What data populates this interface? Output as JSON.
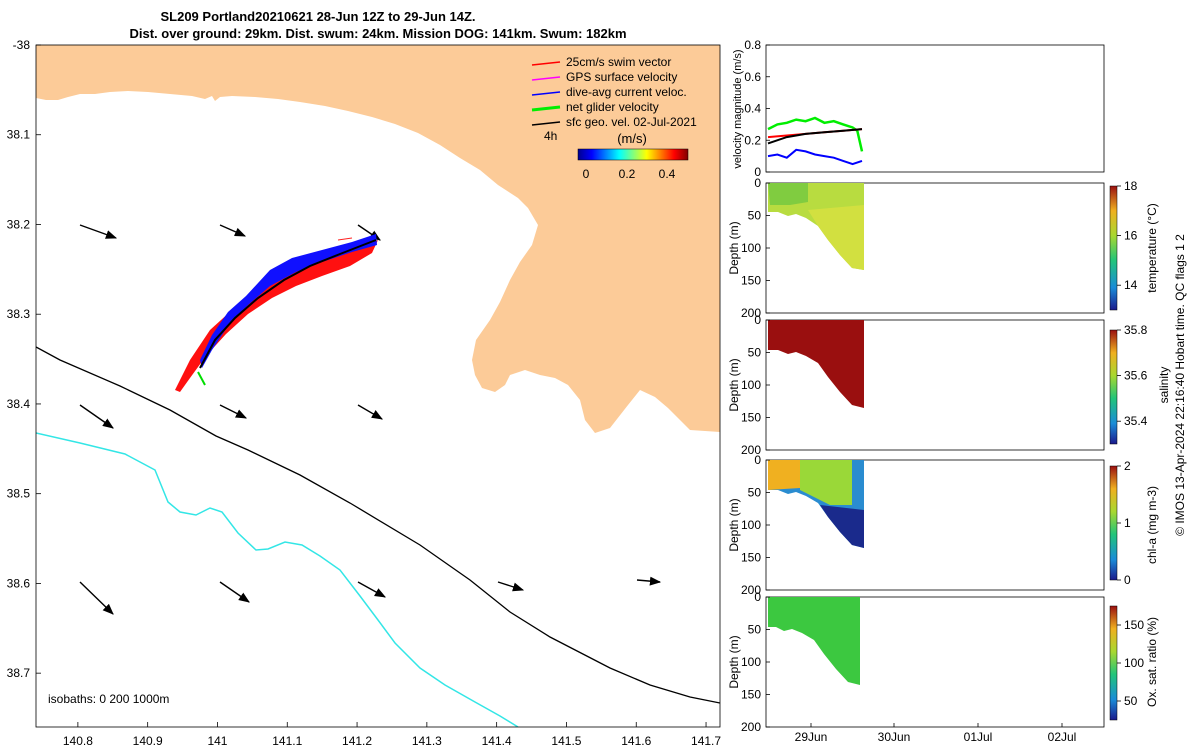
{
  "title": {
    "line1": "SL209 Portland20210621 28-Jun 12Z to 29-Jun 14Z.",
    "line2": "Dist. over ground: 29km. Dist. swum: 24km. Mission DOG: 141km. Swum: 182km"
  },
  "map": {
    "lon_ticks": [
      "140.8",
      "140.9",
      "141",
      "141.1",
      "141.2",
      "141.3",
      "141.4",
      "141.5",
      "141.6",
      "141.7"
    ],
    "lat_ticks": [
      "-38",
      "38.1",
      "38.2",
      "38.3",
      "38.4",
      "38.5",
      "38.6",
      "38.7"
    ],
    "xlim": [
      140.74,
      141.72
    ],
    "ylim": [
      -38.76,
      -38.0
    ],
    "land_color": "#fccb98",
    "legend": [
      {
        "label": "25cm/s swim vector",
        "color": "#ff0000"
      },
      {
        "label": "GPS surface velocity",
        "color": "#ff00ff"
      },
      {
        "label": "dive-avg current veloc.",
        "color": "#0000ff"
      },
      {
        "label": "net glider velocity",
        "color": "#00ee00"
      },
      {
        "label": "sfc geo. vel. 02-Jul-2021",
        "color": "#000000"
      }
    ],
    "legend_time": "4h",
    "colorbar_label": "(m/s)",
    "colorbar_ticks": [
      "0",
      "0.2",
      "0.4"
    ],
    "isobath_label": "isobaths: 0   200  1000m"
  },
  "chart_data": [
    {
      "type": "line",
      "ylabel": "velocity magnitude (m/s)",
      "ylim": [
        0,
        0.8
      ],
      "yticks": [
        "0",
        "0.2",
        "0.4",
        "0.6",
        "0.8"
      ],
      "xlim": [
        "28-Jun 12:00",
        "02-Jul 12:00"
      ],
      "series": [
        {
          "color": "#00ee00",
          "x": [
            0.0,
            0.1,
            0.2,
            0.3,
            0.4,
            0.5,
            0.6,
            0.7,
            0.8,
            0.9,
            0.95,
            1.0
          ],
          "y": [
            0.27,
            0.3,
            0.31,
            0.33,
            0.32,
            0.34,
            0.31,
            0.32,
            0.3,
            0.28,
            0.26,
            0.13
          ]
        },
        {
          "color": "#ff0000",
          "x": [
            0.0,
            0.2,
            0.4,
            0.6,
            0.8,
            1.0
          ],
          "y": [
            0.22,
            0.23,
            0.24,
            0.25,
            0.26,
            0.27
          ]
        },
        {
          "color": "#000000",
          "x": [
            0.0,
            0.2,
            0.4,
            0.6,
            0.8,
            1.0
          ],
          "y": [
            0.18,
            0.22,
            0.24,
            0.25,
            0.26,
            0.27
          ]
        },
        {
          "color": "#0000ff",
          "x": [
            0.0,
            0.1,
            0.2,
            0.3,
            0.4,
            0.5,
            0.6,
            0.7,
            0.8,
            0.9,
            1.0
          ],
          "y": [
            0.1,
            0.11,
            0.09,
            0.14,
            0.13,
            0.11,
            0.1,
            0.09,
            0.07,
            0.05,
            0.07
          ]
        }
      ]
    },
    {
      "type": "heatmap",
      "ylabel": "Depth (m)",
      "yticks": [
        "0",
        "50",
        "100",
        "150",
        "200"
      ],
      "ylim": [
        0,
        200
      ],
      "colorbar_label": "temperature (°C)",
      "colorbar_ticks": [
        "18",
        "16",
        "14"
      ],
      "colorbar_range": [
        13,
        18
      ]
    },
    {
      "type": "heatmap",
      "ylabel": "Depth (m)",
      "yticks": [
        "0",
        "50",
        "100",
        "150",
        "200"
      ],
      "ylim": [
        0,
        200
      ],
      "colorbar_label": "salinity",
      "colorbar_ticks": [
        "35.8",
        "35.6",
        "35.4"
      ],
      "colorbar_range": [
        35.3,
        35.8
      ]
    },
    {
      "type": "heatmap",
      "ylabel": "Depth (m)",
      "yticks": [
        "0",
        "50",
        "100",
        "150",
        "200"
      ],
      "ylim": [
        0,
        200
      ],
      "colorbar_label": "chl-a (mg m-3)",
      "colorbar_ticks": [
        "2",
        "1",
        "0"
      ],
      "colorbar_range": [
        0,
        2
      ]
    },
    {
      "type": "heatmap",
      "ylabel": "Depth (m)",
      "yticks": [
        "0",
        "50",
        "100",
        "150",
        "200"
      ],
      "ylim": [
        0,
        200
      ],
      "colorbar_label": "Ox. sat. ratio (%)",
      "colorbar_ticks": [
        "150",
        "100",
        "50"
      ],
      "colorbar_range": [
        25,
        175
      ],
      "xticks": [
        "29Jun",
        "30Jun",
        "01Jul",
        "02Jul"
      ]
    }
  ],
  "footer": "© IMOS 13-Apr-2024 22:16:40 Hobart time. QC flags 1  2"
}
